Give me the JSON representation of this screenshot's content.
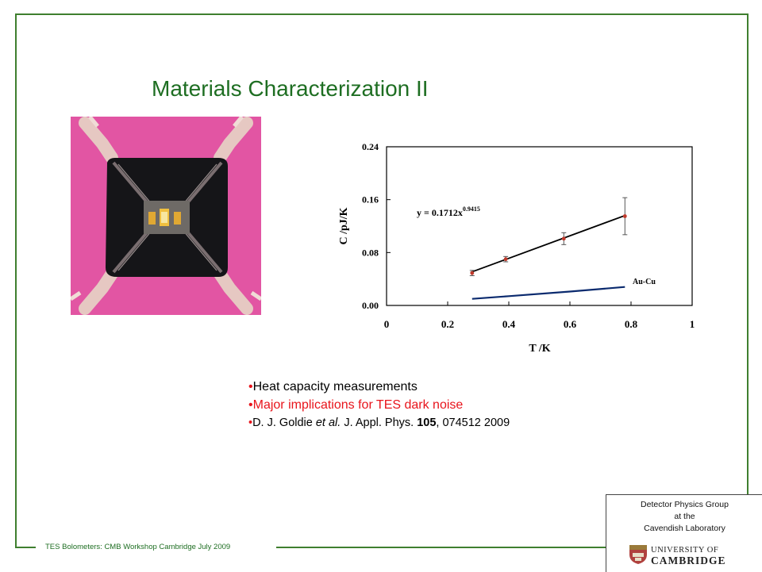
{
  "slide": {
    "title": "Materials Characterization II",
    "footer": "TES Bolometers: CMB Workshop Cambridge July 2009",
    "accent_color": "#1e6e22",
    "frame_color": "#3f7f2f"
  },
  "bullets": [
    {
      "bullet": "•",
      "text": "Heat capacity measurements",
      "color": "#000000"
    },
    {
      "bullet": "•",
      "text": "Major implications for TES dark noise",
      "color": "#e8141b"
    },
    {
      "bullet": "•",
      "parts": {
        "a": "D. J. Goldie ",
        "b": "et al.",
        "c": " J. Appl. Phys. ",
        "d": "105",
        "e": ", 074512 2009"
      },
      "color": "#000000"
    }
  ],
  "lab": {
    "line1": "Detector Physics Group",
    "line2": "at  the",
    "line3": "Cavendish Laboratory",
    "logo_line1": "UNIVERSITY OF",
    "logo_line2": "CAMBRIDGE"
  },
  "photo": {
    "icon": "tes-device-micrograph",
    "bg_color": "#e255a3"
  },
  "chart_data": {
    "type": "scatter",
    "xlabel": "T /K",
    "ylabel": "C /pJ/K",
    "xlim": [
      0,
      1
    ],
    "ylim": [
      0,
      0.24
    ],
    "xticks": [
      "0",
      "0.2",
      "0.4",
      "0.6",
      "0.8",
      "1"
    ],
    "yticks": [
      "0.00",
      "0.08",
      "0.16",
      "0.24"
    ],
    "fit_equation": {
      "base": "y = 0.1712x",
      "exponent": "0.9415"
    },
    "series": [
      {
        "kind": "points",
        "color": "#c0392b",
        "x": [
          0.28,
          0.39,
          0.58,
          0.78
        ],
        "y": [
          0.049,
          0.07,
          0.101,
          0.135
        ],
        "err": [
          0.004,
          0.004,
          0.009,
          0.028
        ]
      },
      {
        "kind": "fit",
        "color": "#000000",
        "x": [
          0.275,
          0.78
        ],
        "y": [
          0.05,
          0.136
        ]
      },
      {
        "name": "Au-Cu",
        "kind": "line",
        "color": "#0a2a6e",
        "x": [
          0.28,
          0.4,
          0.6,
          0.78
        ],
        "y": [
          0.01,
          0.014,
          0.021,
          0.028
        ]
      }
    ],
    "grid": false,
    "legend": "inline label near line"
  }
}
